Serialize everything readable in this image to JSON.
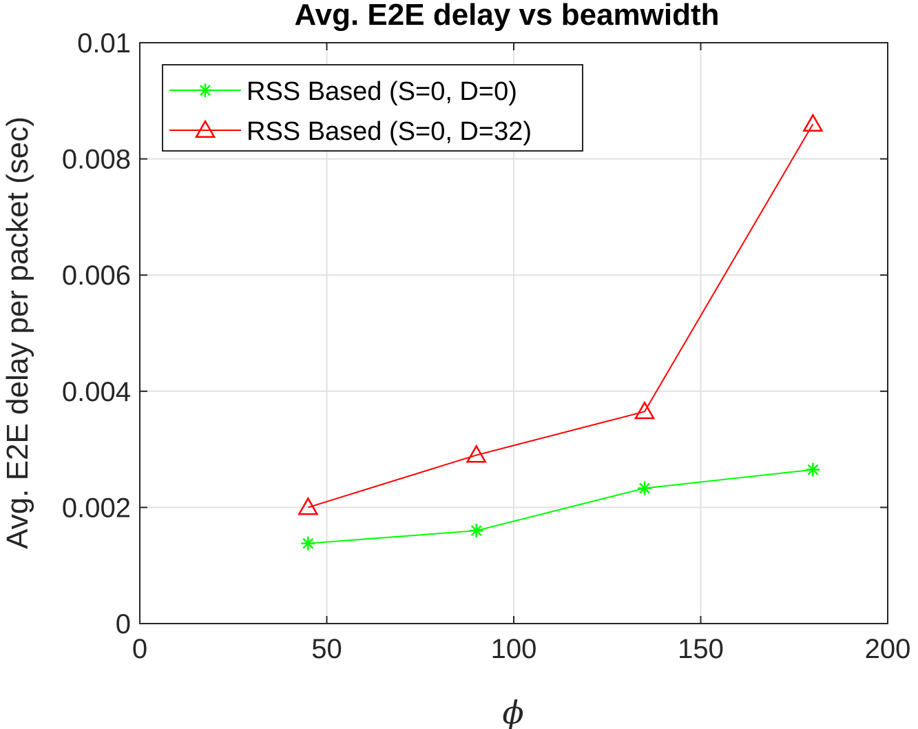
{
  "chart_data": {
    "type": "line",
    "title": "Avg.  E2E delay vs beamwidth",
    "xlabel": "ϕ",
    "ylabel": "Avg. E2E delay per packet (sec)",
    "xlim": [
      0,
      200
    ],
    "ylim": [
      0,
      0.01
    ],
    "xticks": [
      0,
      50,
      100,
      150,
      200
    ],
    "xtick_labels": [
      "0",
      "50",
      "100",
      "150",
      "200"
    ],
    "yticks": [
      0,
      0.002,
      0.004,
      0.006,
      0.008,
      0.01
    ],
    "ytick_labels": [
      "0",
      "0.002",
      "0.004",
      "0.006",
      "0.008",
      "0.01"
    ],
    "grid": true,
    "legend_position": "top-left",
    "x": [
      45,
      90,
      135,
      180
    ],
    "series": [
      {
        "name": "RSS Based (S=0, D=0)",
        "color": "#00ff00",
        "marker": "asterisk",
        "values": [
          0.00138,
          0.0016,
          0.00233,
          0.00265
        ]
      },
      {
        "name": "RSS Based (S=0, D=32)",
        "color": "#ff0000",
        "marker": "triangle",
        "values": [
          0.002,
          0.0029,
          0.00365,
          0.0086
        ]
      }
    ]
  }
}
